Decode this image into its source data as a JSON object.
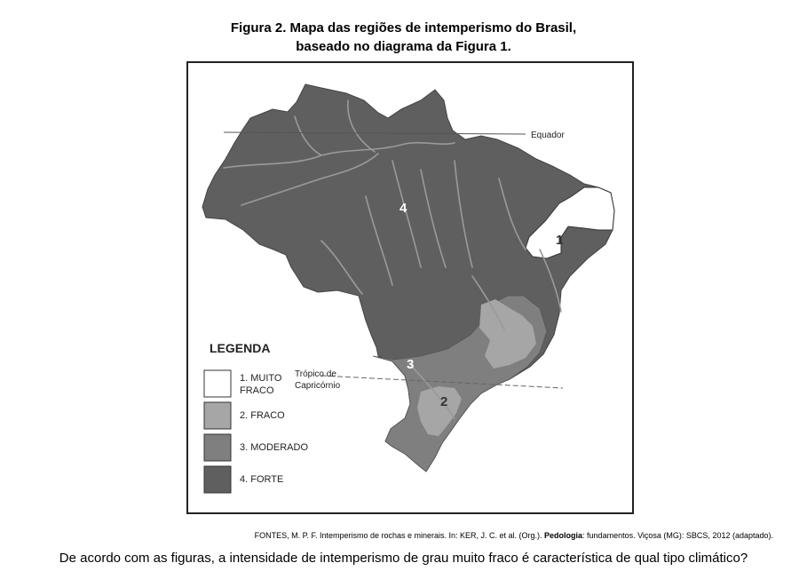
{
  "figure": {
    "title_line1": "Figura 2. Mapa das regiões de intemperismo do Brasil,",
    "title_line2": "baseado no diagrama da Figura 1."
  },
  "map": {
    "equator_label": "Equador",
    "tropic_label_line1": "Trópico de",
    "tropic_label_line2": "Capricórnio",
    "region_numbers": [
      "4",
      "1",
      "3",
      "2"
    ],
    "colors": {
      "muito_fraco": "#ffffff",
      "fraco": "#a6a6a6",
      "moderado": "#7f7f7f",
      "forte": "#5f5f5f",
      "rivers": "#9a9a9a"
    }
  },
  "legend": {
    "title": "LEGENDA",
    "items": [
      {
        "label_line1": "1. MUITO",
        "label_line2": "FRACO",
        "color": "#ffffff"
      },
      {
        "label_line1": "2. FRACO",
        "label_line2": "",
        "color": "#a6a6a6"
      },
      {
        "label_line1": "3. MODERADO",
        "label_line2": "",
        "color": "#7f7f7f"
      },
      {
        "label_line1": "4. FORTE",
        "label_line2": "",
        "color": "#5f5f5f"
      }
    ]
  },
  "source": {
    "prefix": "FONTES, M. P. F. Intemperismo de rochas e minerais. In: KER, J. C. et al. (Org.). ",
    "bold": "Pedologia",
    "suffix": ": fundamentos. Viçosa (MG): SBCS, 2012 (adaptado)."
  },
  "question": "De acordo com as figuras, a intensidade de intemperismo de grau muito fraco é característica de qual tipo climático?"
}
